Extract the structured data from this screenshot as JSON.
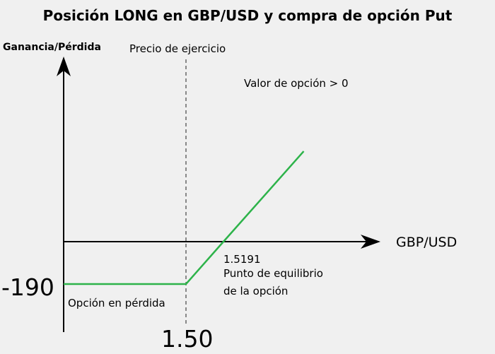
{
  "chart_data": {
    "type": "line",
    "title": "Posición LONG en GBP/USD y compra de opción Put",
    "ylabel": "Ganancia/Pérdida",
    "xlabel": "GBP/USD",
    "strike_label": "Precio de ejercicio",
    "premium_loss_label": "-190",
    "strike_value_label": "1.50",
    "breakeven_value_label": "1.5191",
    "breakeven_caption_line1": "Punto de equilibrio",
    "breakeven_caption_line2": "de la opción",
    "loss_zone_label": "Opción en pérdida",
    "profit_zone_label": "Valor de opción > 0",
    "series": [
      {
        "x": [
          1.44,
          1.5,
          1.5191,
          1.56
        ],
        "y": [
          -190,
          -190,
          0,
          405
        ]
      }
    ],
    "strike": 1.5,
    "breakeven": 1.5191,
    "premium": -190
  },
  "colors": {
    "payoff_line": "#2db34a",
    "axes": "#000000",
    "background": "#f0f0f0"
  }
}
